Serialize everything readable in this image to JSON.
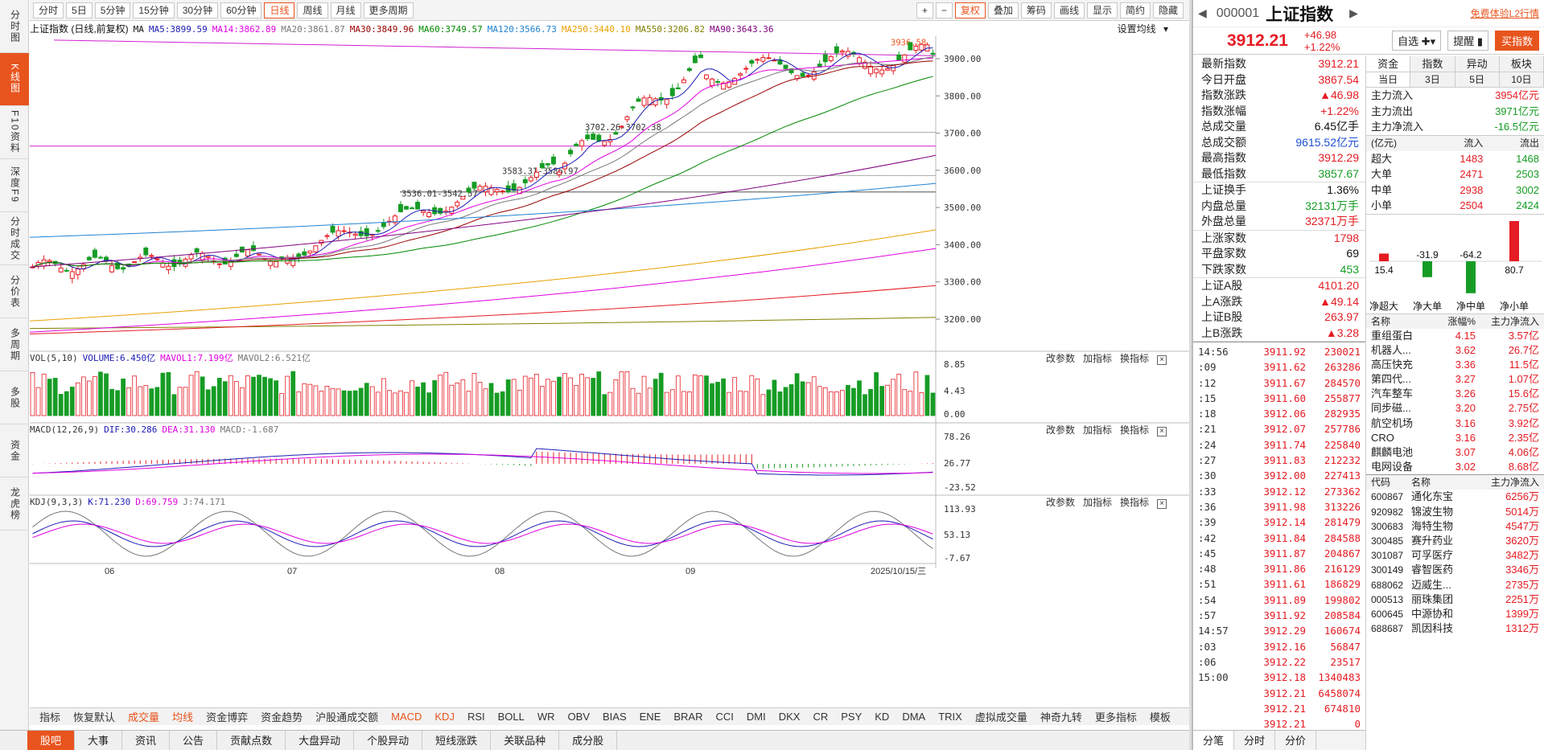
{
  "left_nav": [
    "分时图",
    "K线图",
    "F10资料",
    "深度F9",
    "分时成交",
    "分价表",
    "多周期",
    "多股",
    "资金",
    "龙虎榜"
  ],
  "period_tabs": [
    "分时",
    "5日",
    "5分钟",
    "15分钟",
    "30分钟",
    "60分钟",
    "日线",
    "周线",
    "月线",
    "更多周期"
  ],
  "toolbar_right": [
    "+",
    "−",
    "复权",
    "叠加",
    "筹码",
    "画线",
    "显示",
    "简约",
    "隐藏"
  ],
  "ma_legend": {
    "title": "上证指数 (日线,前复权)",
    "items": [
      {
        "t": "MA5:3899.59",
        "c": "#1c1cb5"
      },
      {
        "t": "MA14:3862.89",
        "c": "#e000e0"
      },
      {
        "t": "MA20:3861.87",
        "c": "#777777"
      },
      {
        "t": "MA30:3849.96",
        "c": "#990000"
      },
      {
        "t": "MA60:3749.57",
        "c": "#008800"
      },
      {
        "t": "MA120:3566.73",
        "c": "#1e82d2"
      },
      {
        "t": "MA250:3440.10",
        "c": "#e8a000"
      },
      {
        "t": "MA550:3206.82",
        "c": "#808000"
      },
      {
        "t": "MA90:3643.36",
        "c": "#800080"
      }
    ],
    "settings": "设置均线"
  },
  "price_axis": [
    "3900.00",
    "3800.00",
    "3700.00",
    "3600.00",
    "3500.00",
    "3400.00",
    "3300.00",
    "3200.00"
  ],
  "annotations": {
    "high": "3936.58",
    "a1": "3702.26-3702.38",
    "a2": "3583.31-3586.97",
    "a3": "3536.01-3542.57"
  },
  "vol_legend": {
    "title": "VOL(5,10)",
    "vol": "VOLUME:6.450亿",
    "m1": "MAVOL1:7.199亿",
    "m2": "MAVOL2:6.521亿",
    "axis": [
      "8.85",
      "4.43",
      "0.00"
    ]
  },
  "macd_legend": {
    "title": "MACD(12,26,9)",
    "dif": "DIF:30.286",
    "dea": "DEA:31.130",
    "macd": "MACD:-1.687",
    "axis": [
      "78.26",
      "26.77",
      "-23.52"
    ]
  },
  "kdj_legend": {
    "title": "KDJ(9,3,3)",
    "k": "K:71.230",
    "d": "D:69.759",
    "j": "J:74.171",
    "axis": [
      "113.93",
      "53.13",
      "-7.67"
    ]
  },
  "panel_tools": [
    "改参数",
    "加指标",
    "换指标"
  ],
  "x_labels": [
    "06",
    "07",
    "08",
    "09"
  ],
  "date_label": "2025/10/15/三",
  "indicators": [
    "指标",
    "恢复默认",
    "成交量",
    "均线",
    "资金博弈",
    "资金趋势",
    "沪股通成交额",
    "MACD",
    "KDJ",
    "RSI",
    "BOLL",
    "WR",
    "OBV",
    "BIAS",
    "ENE",
    "BRAR",
    "CCI",
    "DMI",
    "DKX",
    "CR",
    "PSY",
    "KD",
    "DMA",
    "TRIX",
    "虚拟成交量",
    "神奇九转",
    "更多指标",
    "模板"
  ],
  "footer_tabs": [
    "股吧",
    "大事",
    "资讯",
    "公告",
    "贡献点数",
    "大盘异动",
    "个股异动",
    "短线涨跌",
    "关联品种",
    "成分股"
  ],
  "quote": {
    "code": "000001",
    "name": "上证指数",
    "price": "3912.21",
    "chg": "+46.98",
    "pct": "+1.22%",
    "trial": "免费体验L2行情",
    "btn1": "自选",
    "btn2": "提醒",
    "btn3": "买指数"
  },
  "stats1": [
    [
      "最新指数",
      "3912.21",
      "up"
    ],
    [
      "今日开盘",
      "3867.54",
      "up"
    ],
    [
      "指数涨跌",
      "▲46.98",
      "up"
    ],
    [
      "指数涨幅",
      "+1.22%",
      "up"
    ],
    [
      "总成交量",
      "6.45亿手",
      "blk"
    ],
    [
      "总成交额",
      "9615.52亿元",
      "bl"
    ],
    [
      "最高指数",
      "3912.29",
      "up"
    ],
    [
      "最低指数",
      "3857.67",
      "dn"
    ]
  ],
  "stats2": [
    [
      "上证换手",
      "1.36%",
      "blk"
    ],
    [
      "内盘总量",
      "32131万手",
      "dn"
    ],
    [
      "外盘总量",
      "32371万手",
      "up"
    ]
  ],
  "stats3": [
    [
      "上涨家数",
      "1798",
      "up"
    ],
    [
      "平盘家数",
      "69",
      "blk"
    ],
    [
      "下跌家数",
      "453",
      "dn"
    ]
  ],
  "stats4": [
    [
      "上证A股",
      "4101.20",
      "up"
    ],
    [
      "上A涨跌",
      "▲49.14",
      "up"
    ],
    [
      "上证B股",
      "263.97",
      "up"
    ],
    [
      "上B涨跌",
      "▲3.28",
      "up"
    ]
  ],
  "ticks": [
    [
      "14:56",
      "3911.92",
      "230021"
    ],
    [
      ":09",
      "3911.62",
      "263286"
    ],
    [
      ":12",
      "3911.67",
      "284570"
    ],
    [
      ":15",
      "3911.60",
      "255877"
    ],
    [
      ":18",
      "3912.06",
      "282935"
    ],
    [
      ":21",
      "3912.07",
      "257786"
    ],
    [
      ":24",
      "3911.74",
      "225840"
    ],
    [
      ":27",
      "3911.83",
      "212232"
    ],
    [
      ":30",
      "3912.00",
      "227413"
    ],
    [
      ":33",
      "3912.12",
      "273362"
    ],
    [
      ":36",
      "3911.98",
      "313226"
    ],
    [
      ":39",
      "3912.14",
      "281479"
    ],
    [
      ":42",
      "3911.84",
      "284588"
    ],
    [
      ":45",
      "3911.87",
      "204867"
    ],
    [
      ":48",
      "3911.86",
      "216129"
    ],
    [
      ":51",
      "3911.61",
      "186829"
    ],
    [
      ":54",
      "3911.89",
      "199802"
    ],
    [
      ":57",
      "3911.92",
      "208584"
    ],
    [
      "14:57",
      "3912.29",
      "160674"
    ],
    [
      ":03",
      "3912.16",
      "56847"
    ],
    [
      ":06",
      "3912.22",
      "23517"
    ],
    [
      "15:00",
      "3912.18",
      "1340483"
    ],
    [
      "",
      "3912.21",
      "6458074"
    ],
    [
      "",
      "3912.21",
      "674810"
    ],
    [
      "",
      "3912.21",
      "0"
    ]
  ],
  "tick_tabs": [
    "分笔",
    "分时",
    "分价"
  ],
  "fund": {
    "tabs": [
      "资金",
      "指数",
      "异动",
      "板块"
    ],
    "subtabs": [
      "当日",
      "3日",
      "5日",
      "10日"
    ],
    "flows": [
      [
        "主力流入",
        "3954亿元",
        "up"
      ],
      [
        "主力流出",
        "3971亿元",
        "dn"
      ],
      [
        "主力净流入",
        "-16.5亿元",
        "dn"
      ]
    ],
    "hdr": [
      "(亿元)",
      "流入",
      "流出"
    ],
    "rows": [
      [
        "超大",
        "1483",
        "1468"
      ],
      [
        "大单",
        "2471",
        "2503"
      ],
      [
        "中单",
        "2938",
        "3002"
      ],
      [
        "小单",
        "2504",
        "2424"
      ]
    ],
    "bars": [
      {
        "l": "净超大",
        "v": 15.4
      },
      {
        "l": "净大单",
        "v": -31.9
      },
      {
        "l": "净中单",
        "v": -64.2
      },
      {
        "l": "净小单",
        "v": 80.7
      }
    ]
  },
  "sector_hdr": [
    "名称",
    "涨幅%",
    "主力净流入"
  ],
  "sectors": [
    [
      "重组蛋白",
      "4.15",
      "3.57亿"
    ],
    [
      "机器人...",
      "3.62",
      "26.7亿"
    ],
    [
      "高压快充",
      "3.36",
      "11.5亿"
    ],
    [
      "第四代...",
      "3.27",
      "1.07亿"
    ],
    [
      "汽车整车",
      "3.26",
      "15.6亿"
    ],
    [
      "同步磁...",
      "3.20",
      "2.75亿"
    ],
    [
      "航空机场",
      "3.16",
      "3.92亿"
    ],
    [
      "CRO",
      "3.16",
      "2.35亿"
    ],
    [
      "麒麟电池",
      "3.07",
      "4.06亿"
    ],
    [
      "电网设备",
      "3.02",
      "8.68亿"
    ]
  ],
  "stock_hdr": [
    "代码",
    "名称",
    "主力净流入"
  ],
  "stocks": [
    [
      "600867",
      "通化东宝",
      "6256万"
    ],
    [
      "920982",
      "锦波生物",
      "5014万"
    ],
    [
      "300683",
      "海特生物",
      "4547万"
    ],
    [
      "300485",
      "赛升药业",
      "3620万"
    ],
    [
      "301087",
      "可孚医疗",
      "3482万"
    ],
    [
      "300149",
      "睿智医药",
      "3346万"
    ],
    [
      "688062",
      "迈威生...",
      "2735万"
    ],
    [
      "000513",
      "丽珠集团",
      "2251万"
    ],
    [
      "600645",
      "中源协和",
      "1399万"
    ],
    [
      "688687",
      "凯因科技",
      "1312万"
    ]
  ]
}
